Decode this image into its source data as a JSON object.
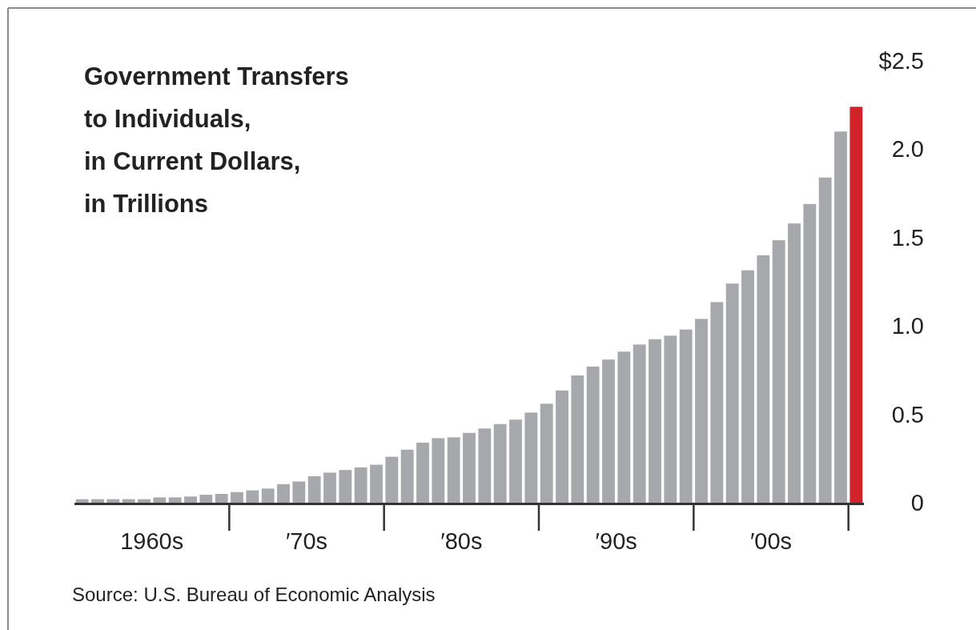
{
  "chart_data": {
    "type": "bar",
    "title": "Government Transfers\nto Individuals,\nin Current Dollars,\nin Trillions",
    "categories": [
      null,
      null,
      null,
      null,
      "1960s",
      null,
      null,
      null,
      null,
      null,
      null,
      null,
      null,
      null,
      "′70s",
      null,
      null,
      null,
      null,
      null,
      null,
      null,
      null,
      null,
      "′80s",
      null,
      null,
      null,
      null,
      null,
      null,
      null,
      null,
      null,
      "′90s",
      null,
      null,
      null,
      null,
      null,
      null,
      null,
      null,
      null,
      "′00s",
      null,
      null,
      null,
      null,
      null,
      null
    ],
    "values": [
      0.02,
      0.02,
      0.02,
      0.02,
      0.02,
      0.03,
      0.03,
      0.035,
      0.045,
      0.05,
      0.06,
      0.07,
      0.08,
      0.105,
      0.12,
      0.15,
      0.17,
      0.185,
      0.2,
      0.215,
      0.26,
      0.3,
      0.34,
      0.365,
      0.37,
      0.395,
      0.42,
      0.445,
      0.47,
      0.51,
      0.56,
      0.635,
      0.72,
      0.77,
      0.81,
      0.855,
      0.895,
      0.925,
      0.945,
      0.98,
      1.04,
      1.135,
      1.24,
      1.315,
      1.4,
      1.485,
      1.58,
      1.69,
      1.84,
      2.1,
      2.24
    ],
    "colors": [
      "#a7a8ab",
      "#a7a8ab",
      "#a7a8ab",
      "#a7a8ab",
      "#a7a8ab",
      "#a7a8ab",
      "#a7a8ab",
      "#a7a8ab",
      "#a7a8ab",
      "#a7a8ab",
      "#a7a8ab",
      "#a7a8ab",
      "#a7a8ab",
      "#a7a8ab",
      "#a7a8ab",
      "#a7a8ab",
      "#a7a8ab",
      "#a7a8ab",
      "#a7a8ab",
      "#a7a8ab",
      "#a7a8ab",
      "#a7a8ab",
      "#a7a8ab",
      "#a7a8ab",
      "#a7a8ab",
      "#a7a8ab",
      "#a7a8ab",
      "#a7a8ab",
      "#a7a8ab",
      "#a7a8ab",
      "#a7a8ab",
      "#a7a8ab",
      "#a7a8ab",
      "#a7a8ab",
      "#a7a8ab",
      "#a7a8ab",
      "#a7a8ab",
      "#a7a8ab",
      "#a7a8ab",
      "#a7a8ab",
      "#a7a8ab",
      "#a7a8ab",
      "#a7a8ab",
      "#a7a8ab",
      "#a7a8ab",
      "#a7a8ab",
      "#a7a8ab",
      "#a7a8ab",
      "#a7a8ab",
      "#a7a8ab",
      "#d2232a"
    ],
    "ylim": [
      0,
      2.5
    ],
    "yticks": [
      {
        "value": 0,
        "label": "0"
      },
      {
        "value": 0.5,
        "label": "0.5"
      },
      {
        "value": 1,
        "label": "1.0"
      },
      {
        "value": 1.5,
        "label": "1.5"
      },
      {
        "value": 2,
        "label": "2.0"
      },
      {
        "value": 2.5,
        "label": "$2.5"
      }
    ],
    "grid": false,
    "annotations": [
      "Source: U.S. Bureau of Economic Analysis"
    ]
  }
}
